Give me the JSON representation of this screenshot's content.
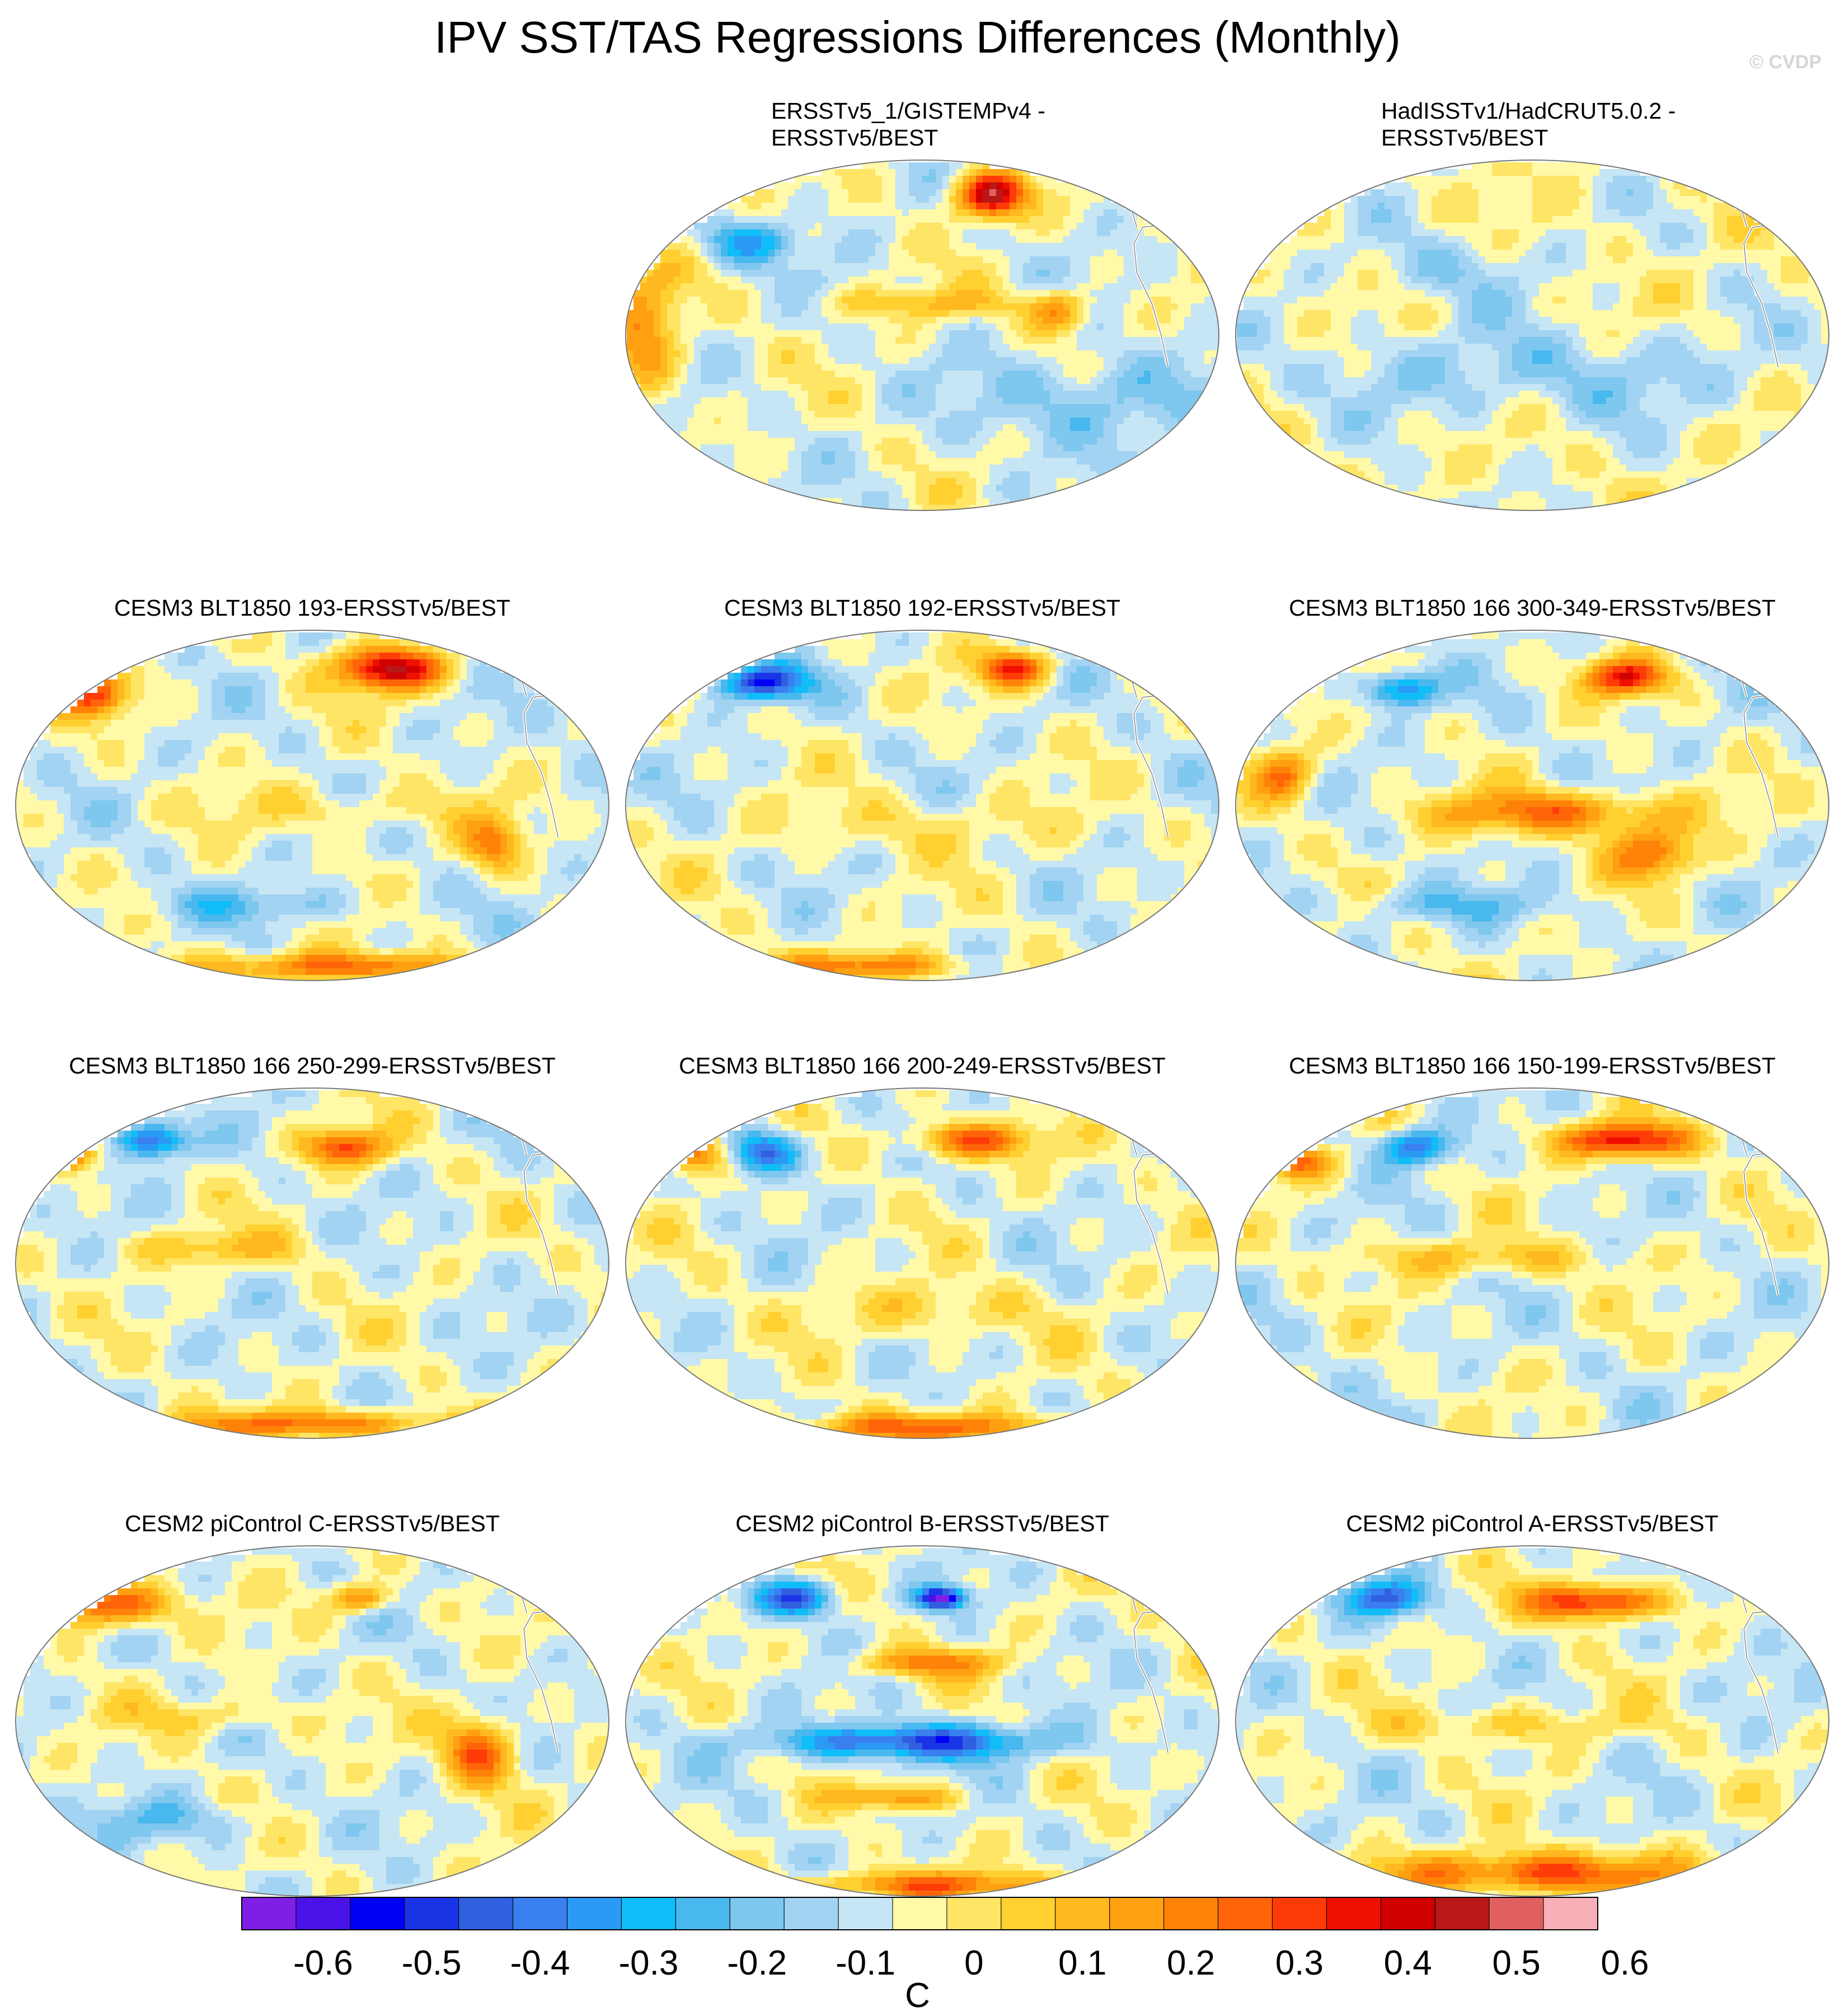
{
  "title": "IPV SST/TAS Regressions Differences (Monthly)",
  "copyright": "© CVDP",
  "panels": [
    {
      "id": "p1",
      "title_lines": [
        "ERSSTv5_1/GISTEMPv4 -",
        "ERSSTv5/BEST"
      ],
      "col": 1,
      "row": 0,
      "pattern": "gistemp"
    },
    {
      "id": "p2",
      "title_lines": [
        "HadISSTv1/HadCRUT5.0.2 -",
        "ERSSTv5/BEST"
      ],
      "col": 2,
      "row": 0,
      "pattern": "hadcrut"
    },
    {
      "id": "p3",
      "title_lines": [
        "CESM3 BLT1850 193-ERSSTv5/BEST"
      ],
      "col": 0,
      "row": 1,
      "pattern": "blt193"
    },
    {
      "id": "p4",
      "title_lines": [
        "CESM3 BLT1850 192-ERSSTv5/BEST"
      ],
      "col": 1,
      "row": 1,
      "pattern": "blt192"
    },
    {
      "id": "p5",
      "title_lines": [
        "CESM3 BLT1850 166 300-349-ERSSTv5/BEST"
      ],
      "col": 2,
      "row": 1,
      "pattern": "blt300"
    },
    {
      "id": "p6",
      "title_lines": [
        "CESM3 BLT1850 166 250-299-ERSSTv5/BEST"
      ],
      "col": 0,
      "row": 2,
      "pattern": "blt250"
    },
    {
      "id": "p7",
      "title_lines": [
        "CESM3 BLT1850 166 200-249-ERSSTv5/BEST"
      ],
      "col": 1,
      "row": 2,
      "pattern": "blt200"
    },
    {
      "id": "p8",
      "title_lines": [
        "CESM3 BLT1850 166 150-199-ERSSTv5/BEST"
      ],
      "col": 2,
      "row": 2,
      "pattern": "blt150"
    },
    {
      "id": "p9",
      "title_lines": [
        "CESM2 piControl C-ERSSTv5/BEST"
      ],
      "col": 0,
      "row": 3,
      "pattern": "pic_c"
    },
    {
      "id": "p10",
      "title_lines": [
        "CESM2 piControl B-ERSSTv5/BEST"
      ],
      "col": 1,
      "row": 3,
      "pattern": "pic_b"
    },
    {
      "id": "p11",
      "title_lines": [
        "CESM2 piControl A-ERSSTv5/BEST"
      ],
      "col": 2,
      "row": 3,
      "pattern": "pic_a"
    }
  ],
  "colorbar": {
    "unit": "C",
    "colors": [
      "#7f1fe6",
      "#4a12e6",
      "#0000f5",
      "#1a35e6",
      "#3060e0",
      "#3a7ff0",
      "#2a9af5",
      "#10bdf8",
      "#48b8ee",
      "#7ec7ee",
      "#a3d3f2",
      "#c6e5f5",
      "#fff9a8",
      "#ffe566",
      "#ffd030",
      "#ffb820",
      "#ffa010",
      "#ff8208",
      "#ff6408",
      "#ff3c08",
      "#f01000",
      "#d00000",
      "#b81818",
      "#e06060",
      "#f8b0b8"
    ],
    "tick_labels": [
      "-0.6",
      "-0.5",
      "-0.4",
      "-0.3",
      "-0.2",
      "-0.1",
      "0",
      "0.1",
      "0.2",
      "0.3",
      "0.4",
      "0.5",
      "0.6"
    ]
  }
}
